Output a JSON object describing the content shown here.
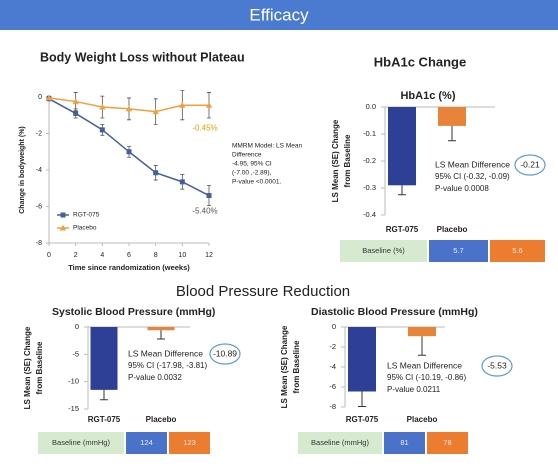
{
  "header": {
    "title": "Efficacy"
  },
  "section_title": "Blood Pressure  Reduction",
  "chart_data": [
    {
      "type": "line",
      "title": "Body Weight Loss without Plateau",
      "xlabel": "Time since randomization (weeks)",
      "ylabel": "Change in bodyweight (%)",
      "x": [
        0,
        2,
        4,
        6,
        8,
        10,
        12
      ],
      "xlim": [
        0,
        12
      ],
      "xticks": [
        0,
        2,
        4,
        6,
        8,
        10,
        12
      ],
      "ylim": [
        -8,
        0
      ],
      "yticks": [
        0,
        -2,
        -4,
        -6,
        -8
      ],
      "legend": "lower left",
      "series": [
        {
          "name": "RGT-075",
          "color": "#44609c",
          "marker": "square",
          "values": [
            -0.1,
            -0.9,
            -1.8,
            -3.0,
            -4.15,
            -4.65,
            -5.4
          ],
          "errors": [
            0.1,
            0.25,
            0.3,
            0.3,
            0.4,
            0.4,
            0.55
          ],
          "value_labels": [
            null,
            null,
            null,
            null,
            null,
            null,
            "-5.40%"
          ]
        },
        {
          "name": "Placebo",
          "color": "#f0a040",
          "marker": "triangle",
          "values": [
            -0.05,
            -0.25,
            -0.55,
            -0.65,
            -0.8,
            -0.45,
            -0.45
          ],
          "errors": [
            0.1,
            0.5,
            0.6,
            0.6,
            0.7,
            0.8,
            0.7
          ],
          "value_labels": [
            null,
            null,
            null,
            null,
            null,
            null,
            "-0.45%"
          ]
        }
      ],
      "annotation": [
        "MMRM Model: LS Mean",
        "Difference",
        "-4.95, 95% CI",
        "(-7.00 ,-2.89),",
        "P-value <0.0001."
      ]
    },
    {
      "type": "bar",
      "title": "HbA1c Change",
      "subtitle": "HbA1c (%)",
      "ylabel": [
        "LS Mean (SE) Change",
        "from Baseline"
      ],
      "categories": [
        "RGT-075",
        "Placebo"
      ],
      "values": [
        -0.29,
        -0.07
      ],
      "errors": [
        0.035,
        0.055
      ],
      "colors": [
        "#2e3f96",
        "#e8833a"
      ],
      "ylim": [
        -0.4,
        0
      ],
      "yticks": [
        {
          "value": 0,
          "label": "0.0"
        },
        -0.1,
        -0.2,
        -0.3,
        -0.4
      ],
      "annotation_label": "LS Mean Difference",
      "difference": -0.21,
      "annotation": [
        "95% CI (-0.32, -0.09)",
        "P-value 0.0008"
      ],
      "baseline": {
        "label": "Baseline (%)",
        "values": [
          5.7,
          5.6
        ]
      }
    },
    {
      "type": "bar",
      "title": "Systolic Blood Pressure (mmHg)",
      "ylabel": [
        "LS Mean (SE) Change",
        "from Baseline"
      ],
      "categories": [
        "RGT-075",
        "Placebo"
      ],
      "values": [
        -11.5,
        -0.6
      ],
      "errors": [
        1.8,
        1.6
      ],
      "colors": [
        "#2e3f96",
        "#e8833a"
      ],
      "ylim": [
        -15,
        0
      ],
      "yticks": [
        0,
        -5,
        -10,
        -15
      ],
      "annotation_label": "LS Mean Difference",
      "difference": -10.89,
      "annotation": [
        "95% CI (-17.98, -3.81)",
        "P-value 0.0032"
      ],
      "baseline": {
        "label": "Baseline (mmHg)",
        "values": [
          124,
          123
        ]
      }
    },
    {
      "type": "bar",
      "title": "Diastolic Blood Pressure (mmHg)",
      "ylabel": [
        "LS Mean (SE) Change",
        "from Baseline"
      ],
      "categories": [
        "RGT-075",
        "Placebo"
      ],
      "values": [
        -6.45,
        -0.92
      ],
      "errors": [
        1.5,
        1.9
      ],
      "colors": [
        "#2e3f96",
        "#e8833a"
      ],
      "ylim": [
        -8,
        0
      ],
      "yticks": [
        0,
        -2,
        -4,
        -6,
        -8
      ],
      "annotation_label": "LS Mean Difference",
      "difference": -5.53,
      "annotation": [
        "95% CI (-10.19, -0.86)",
        "P-value 0.0211"
      ],
      "baseline": {
        "label": "Baseline (mmHg)",
        "values": [
          81,
          78
        ]
      }
    }
  ]
}
